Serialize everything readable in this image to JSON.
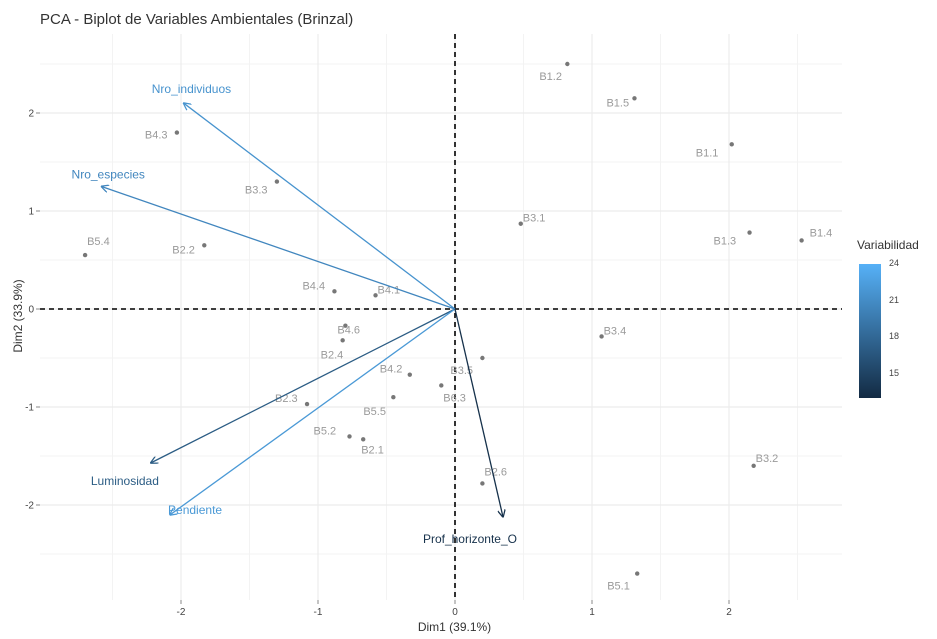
{
  "chart_data": {
    "type": "scatter",
    "title": "PCA - Biplot de Variables Ambientales (Brinzal)",
    "xlabel": "Dim1 (39.1%)",
    "ylabel": "Dim2 (33.9%)",
    "xlim": [
      -3.3,
      2.8
    ],
    "ylim": [
      -3.0,
      2.8
    ],
    "x_ticks": [
      -2,
      -1,
      0,
      1,
      2
    ],
    "x_tick_labels": [
      "-2",
      "-1",
      "0",
      "1",
      "2"
    ],
    "y_ticks": [
      -2,
      -1,
      0,
      1,
      2
    ],
    "y_tick_labels": [
      "-2",
      "-1",
      "0",
      "1",
      "2"
    ],
    "grid": true,
    "reference_lines": "dashed at x=0 and y=0",
    "points": [
      {
        "label": "B1.2",
        "x": 0.82,
        "y": 2.5
      },
      {
        "label": "B1.5",
        "x": 1.31,
        "y": 2.15
      },
      {
        "label": "B1.1",
        "x": 2.02,
        "y": 1.68
      },
      {
        "label": "B1.3",
        "x": 2.15,
        "y": 0.78
      },
      {
        "label": "B1.4",
        "x": 2.53,
        "y": 0.7
      },
      {
        "label": "B3.1",
        "x": 0.48,
        "y": 0.87
      },
      {
        "label": "B3.4",
        "x": 1.07,
        "y": -0.28
      },
      {
        "label": "B3.2",
        "x": 2.18,
        "y": -1.6
      },
      {
        "label": "B5.1",
        "x": 1.33,
        "y": -2.7
      },
      {
        "label": "B2.6",
        "x": 0.2,
        "y": -1.78
      },
      {
        "label": "B3.5",
        "x": 0.2,
        "y": -0.5
      },
      {
        "label": "B6.3",
        "x": -0.1,
        "y": -0.78
      },
      {
        "label": "B4.3",
        "x": -2.03,
        "y": 1.8
      },
      {
        "label": "B3.3",
        "x": -1.3,
        "y": 1.3
      },
      {
        "label": "B5.4",
        "x": -2.7,
        "y": 0.55
      },
      {
        "label": "B2.2",
        "x": -1.83,
        "y": 0.65
      },
      {
        "label": "B4.4",
        "x": -0.88,
        "y": 0.18
      },
      {
        "label": "B4.1",
        "x": -0.58,
        "y": 0.14
      },
      {
        "label": "B4.6",
        "x": -0.8,
        "y": -0.17
      },
      {
        "label": "B2.4",
        "x": -0.82,
        "y": -0.32
      },
      {
        "label": "B4.2",
        "x": -0.33,
        "y": -0.67
      },
      {
        "label": "B2.3",
        "x": -1.08,
        "y": -0.97
      },
      {
        "label": "B5.5",
        "x": -0.45,
        "y": -0.9
      },
      {
        "label": "B5.2",
        "x": -0.77,
        "y": -1.3
      },
      {
        "label": "B2.1",
        "x": -0.67,
        "y": -1.33
      }
    ],
    "vectors": [
      {
        "name": "Nro_individuos",
        "x": -1.98,
        "y": 2.1,
        "variabilidad": 21.5
      },
      {
        "name": "Nro_especies",
        "x": -2.58,
        "y": 1.25,
        "variabilidad": 20.5
      },
      {
        "name": "Luminosidad",
        "x": -2.22,
        "y": -1.57,
        "variabilidad": 17.0
      },
      {
        "name": "Pendiente",
        "x": -2.08,
        "y": -2.1,
        "variabilidad": 22.0
      },
      {
        "name": "Prof_horizonte_O",
        "x": 0.35,
        "y": -2.12,
        "variabilidad": 13.5
      }
    ],
    "legend": {
      "title": "Variabilidad",
      "placement": "right",
      "ticks": [
        24,
        21,
        18,
        15
      ],
      "range": [
        13,
        24
      ],
      "low_color": "#132B43",
      "high_color": "#56B1F7"
    },
    "colors": {
      "points": "#777777",
      "point_labels": "#9a9a9a",
      "grid": "#ececec",
      "axis_lines": "#000000"
    }
  }
}
